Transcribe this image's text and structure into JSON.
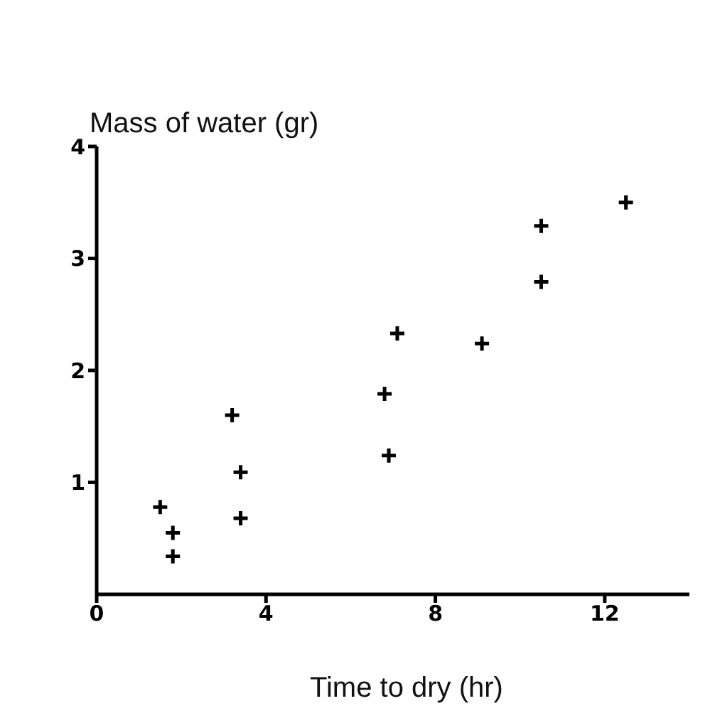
{
  "chart_data": {
    "type": "scatter",
    "ylabel": "Mass of water (gr)",
    "xlabel": "Time to dry (hr)",
    "x": [
      1.5,
      1.8,
      1.8,
      3.2,
      3.4,
      3.4,
      6.8,
      6.9,
      7.1,
      9.1,
      10.5,
      10.5,
      12.5
    ],
    "values": [
      0.78,
      0.55,
      0.34,
      1.6,
      1.09,
      0.68,
      1.79,
      1.24,
      2.33,
      2.24,
      3.29,
      2.79,
      3.5
    ],
    "color": "#000000",
    "marker": "cross",
    "grid": false,
    "xlim": [
      0,
      14
    ],
    "xticks": [
      0,
      4,
      8,
      12
    ],
    "ylim": [
      0,
      4
    ],
    "yticks": [
      1,
      2,
      3,
      4
    ]
  }
}
